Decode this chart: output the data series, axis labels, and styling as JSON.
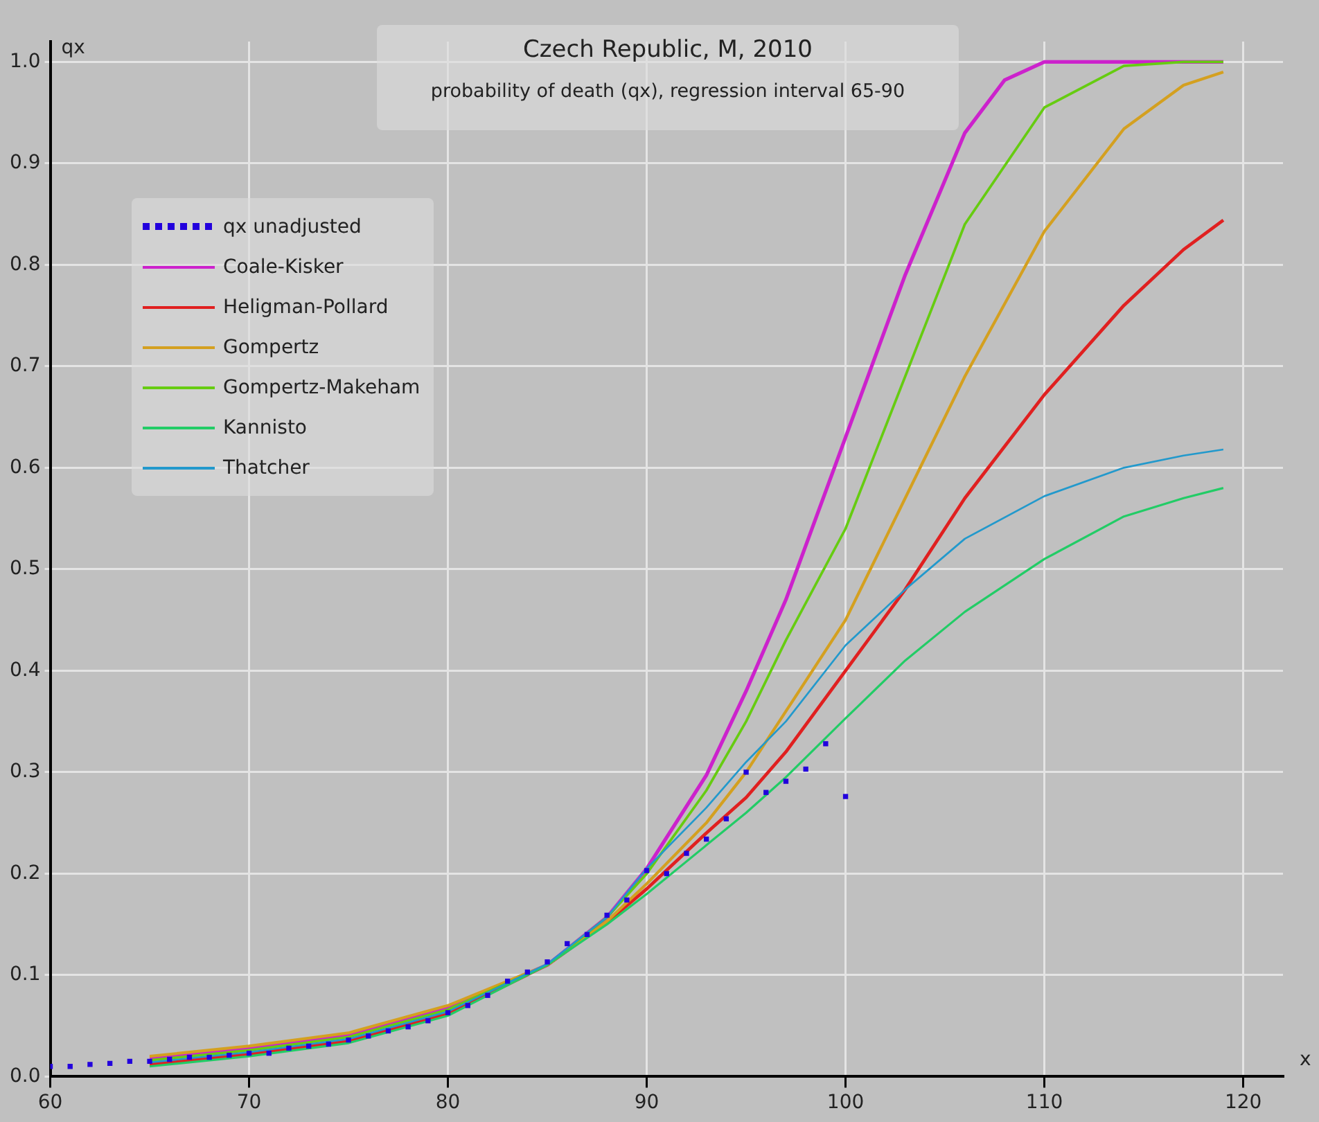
{
  "chart_data": {
    "type": "line",
    "title": "Czech Republic, M, 2010",
    "subtitle": "probability of death (qx), regression interval 65-90",
    "xlabel": "x",
    "ylabel": "qx",
    "xlim": [
      60,
      122
    ],
    "xticks": [
      60,
      70,
      80,
      90,
      100,
      110,
      120
    ],
    "ylim": [
      0,
      1.02
    ],
    "yticks": [
      {
        "value": 0,
        "label": "0.0"
      },
      0.1,
      0.2,
      0.3,
      0.4,
      0.5,
      0.6,
      0.7,
      0.8,
      0.9,
      {
        "value": 1,
        "label": "1.0"
      }
    ],
    "grid": true,
    "legend": "top left",
    "line_style": "solid",
    "series": [
      {
        "name": "qx unadjusted",
        "type": "scatter",
        "marker": "square",
        "color": "#2200dd",
        "x": [
          60,
          61,
          62,
          63,
          64,
          65,
          66,
          67,
          68,
          69,
          70,
          71,
          72,
          73,
          74,
          75,
          76,
          77,
          78,
          79,
          80,
          81,
          82,
          83,
          84,
          85,
          86,
          87,
          88,
          89,
          90,
          91,
          92,
          93,
          94,
          95,
          96,
          97,
          98,
          99,
          100
        ],
        "values": [
          0.01,
          0.01,
          0.012,
          0.013,
          0.015,
          0.015,
          0.017,
          0.019,
          0.019,
          0.021,
          0.023,
          0.023,
          0.028,
          0.03,
          0.032,
          0.036,
          0.04,
          0.045,
          0.049,
          0.055,
          0.063,
          0.07,
          0.08,
          0.094,
          0.103,
          0.113,
          0.131,
          0.14,
          0.159,
          0.174,
          0.203,
          0.2,
          0.22,
          0.234,
          0.254,
          0.3,
          0.28,
          0.291,
          0.303,
          0.328,
          0.276
        ]
      },
      {
        "name": "Coale-Kisker",
        "color": "#cc22cc",
        "x": [
          65,
          70,
          75,
          80,
          85,
          88,
          90,
          93,
          95,
          97,
          100,
          103,
          106,
          108,
          110,
          114,
          117,
          119
        ],
        "values": [
          0.018,
          0.028,
          0.041,
          0.068,
          0.11,
          0.157,
          0.205,
          0.297,
          0.38,
          0.47,
          0.63,
          0.79,
          0.93,
          0.982,
          1.0,
          1.0,
          1.0,
          1.0
        ]
      },
      {
        "name": "Heligman-Pollard",
        "color": "#e02020",
        "x": [
          65,
          70,
          75,
          80,
          85,
          88,
          90,
          93,
          95,
          97,
          100,
          103,
          106,
          110,
          114,
          117,
          119
        ],
        "values": [
          0.012,
          0.022,
          0.035,
          0.062,
          0.11,
          0.152,
          0.185,
          0.24,
          0.275,
          0.32,
          0.4,
          0.48,
          0.57,
          0.672,
          0.76,
          0.815,
          0.844
        ]
      },
      {
        "name": "Gompertz",
        "color": "#d4a020",
        "x": [
          65,
          70,
          75,
          80,
          85,
          88,
          90,
          93,
          95,
          97,
          100,
          103,
          106,
          110,
          114,
          117,
          119
        ],
        "values": [
          0.02,
          0.03,
          0.043,
          0.07,
          0.11,
          0.153,
          0.19,
          0.25,
          0.3,
          0.36,
          0.45,
          0.57,
          0.69,
          0.833,
          0.934,
          0.977,
          0.99
        ]
      },
      {
        "name": "Gompertz-Makeham",
        "color": "#66cc11",
        "x": [
          65,
          70,
          75,
          80,
          85,
          88,
          90,
          93,
          95,
          97,
          100,
          103,
          106,
          110,
          114,
          117,
          119
        ],
        "values": [
          0.016,
          0.026,
          0.039,
          0.066,
          0.11,
          0.157,
          0.2,
          0.282,
          0.35,
          0.43,
          0.54,
          0.69,
          0.84,
          0.955,
          0.996,
          1.0,
          1.0
        ]
      },
      {
        "name": "Kannisto",
        "color": "#22cc66",
        "x": [
          65,
          70,
          75,
          80,
          85,
          88,
          90,
          93,
          95,
          97,
          100,
          103,
          106,
          110,
          114,
          117,
          119
        ],
        "values": [
          0.01,
          0.02,
          0.033,
          0.06,
          0.11,
          0.15,
          0.18,
          0.228,
          0.26,
          0.295,
          0.353,
          0.41,
          0.458,
          0.51,
          0.552,
          0.57,
          0.58
        ]
      },
      {
        "name": "Thatcher",
        "color": "#2299cc",
        "x": [
          65,
          70,
          75,
          80,
          85,
          88,
          90,
          93,
          95,
          97,
          100,
          103,
          106,
          110,
          114,
          117,
          119
        ],
        "values": [
          0.014,
          0.024,
          0.037,
          0.064,
          0.111,
          0.157,
          0.205,
          0.265,
          0.31,
          0.35,
          0.425,
          0.48,
          0.53,
          0.572,
          0.6,
          0.612,
          0.618
        ]
      }
    ]
  }
}
